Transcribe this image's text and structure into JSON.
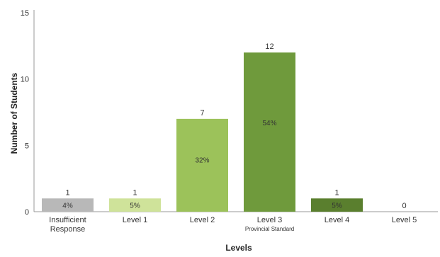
{
  "chart_data": {
    "type": "bar",
    "title": "",
    "xlabel": "Levels",
    "ylabel": "Number of Students",
    "ylim": [
      0,
      15
    ],
    "yticks": [
      "0",
      "5",
      "10",
      "15"
    ],
    "categories": [
      {
        "label": "Insufficient Response",
        "lines": [
          "Insufficient",
          "Response"
        ],
        "sublabel": ""
      },
      {
        "label": "Level 1",
        "lines": [
          "Level 1"
        ],
        "sublabel": ""
      },
      {
        "label": "Level 2",
        "lines": [
          "Level 2"
        ],
        "sublabel": ""
      },
      {
        "label": "Level 3",
        "lines": [
          "Level 3"
        ],
        "sublabel": "Provincial Standard"
      },
      {
        "label": "Level 4",
        "lines": [
          "Level 4"
        ],
        "sublabel": ""
      },
      {
        "label": "Level 5",
        "lines": [
          "Level 5"
        ],
        "sublabel": ""
      }
    ],
    "values": [
      1,
      1,
      7,
      12,
      1,
      0
    ],
    "value_labels": [
      "1",
      "1",
      "7",
      "12",
      "1",
      "0"
    ],
    "percent_labels": [
      "4%",
      "5%",
      "32%",
      "54%",
      "5%",
      ""
    ],
    "colors": [
      "#b8b8b8",
      "#cfe39a",
      "#9cc25a",
      "#6f9a3c",
      "#5a7f2e",
      "#cccccc"
    ],
    "grid": false,
    "legend": "none"
  }
}
